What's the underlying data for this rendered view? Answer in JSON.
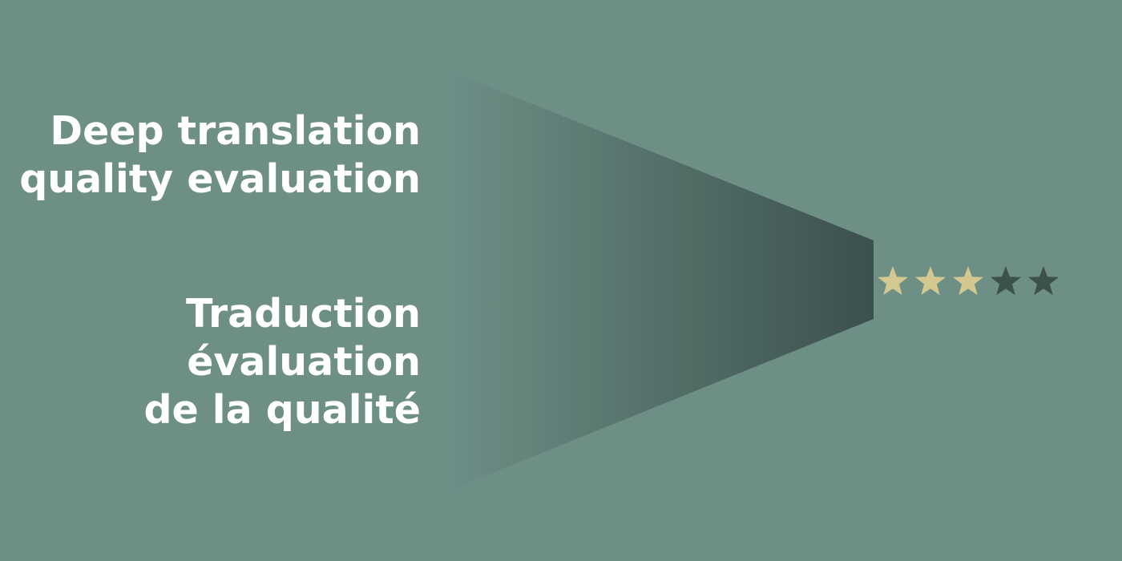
{
  "headline_english": {
    "lines": [
      "Deep translation",
      "quality evaluation"
    ]
  },
  "headline_french": {
    "lines": [
      "Traduction",
      "évaluation",
      "de la qualité"
    ]
  },
  "rating": {
    "filled": 3,
    "total": 5
  },
  "colors": {
    "background": "#6d8f86",
    "funnel_dark": "#3c504c",
    "star_filled": "#d2c890",
    "star_empty": "#3c504c",
    "text": "#ffffff"
  },
  "icons": {
    "funnel": "funnel-icon",
    "star": "star-icon"
  }
}
